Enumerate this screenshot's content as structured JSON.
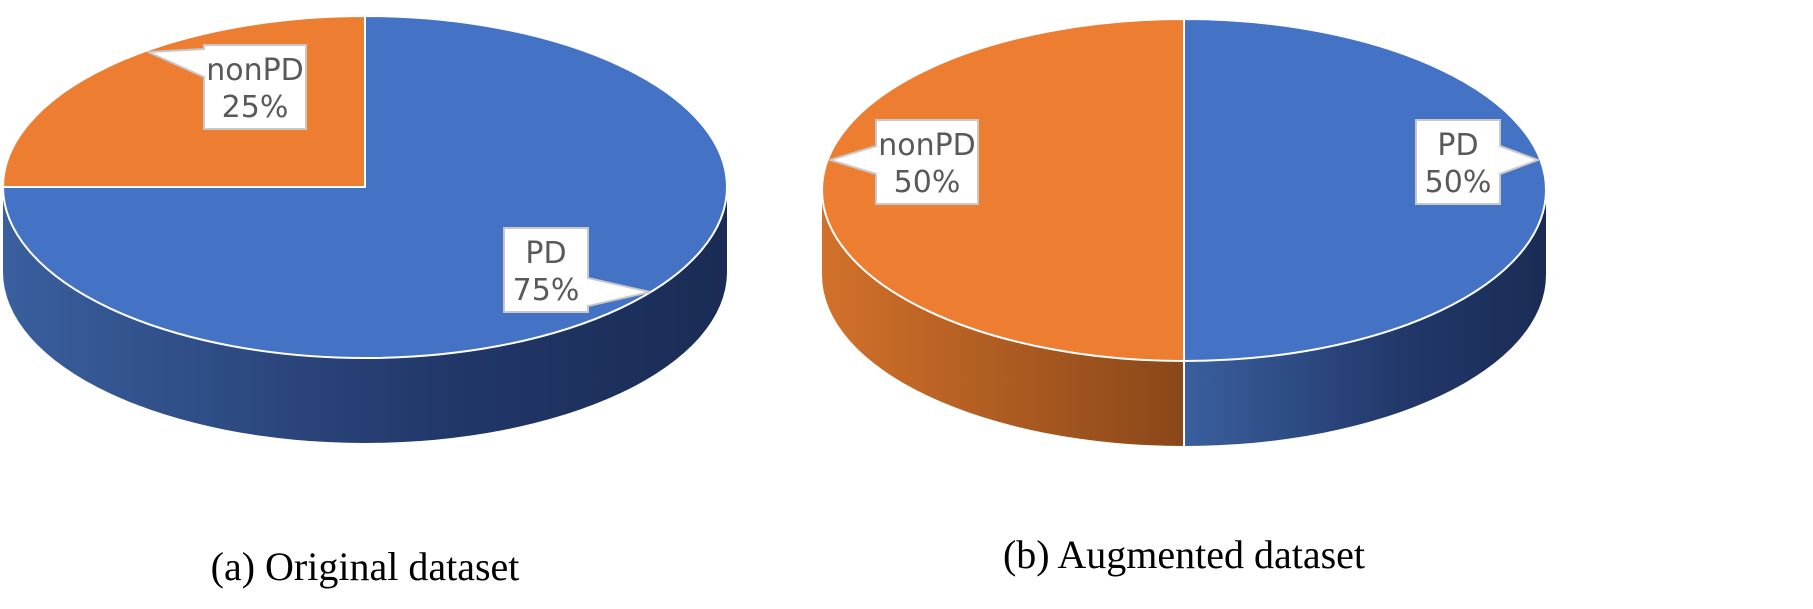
{
  "chart_data": [
    {
      "type": "pie",
      "style": "3d",
      "caption": "(a) Original dataset",
      "slices": [
        {
          "label": "PD",
          "value": 75,
          "value_text": "75%",
          "color": "#4472C4"
        },
        {
          "label": "nonPD",
          "value": 25,
          "value_text": "25%",
          "color": "#ED7D31"
        }
      ]
    },
    {
      "type": "pie",
      "style": "3d",
      "caption": "(b) Augmented dataset",
      "slices": [
        {
          "label": "PD",
          "value": 50,
          "value_text": "50%",
          "color": "#4472C4"
        },
        {
          "label": "nonPD",
          "value": 50,
          "value_text": "50%",
          "color": "#ED7D31"
        }
      ]
    }
  ]
}
